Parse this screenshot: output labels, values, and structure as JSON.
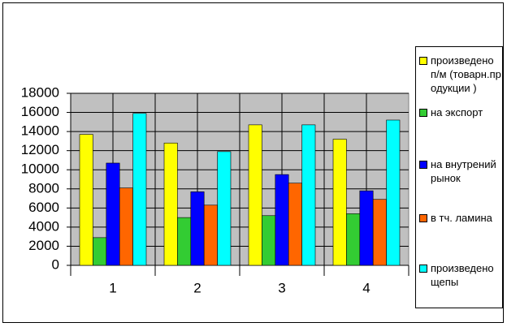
{
  "chart_data": {
    "type": "bar",
    "categories": [
      "1",
      "2",
      "3",
      "4"
    ],
    "series": [
      {
        "name": "произведено п/м (товарн.продукции )",
        "color": "#ffff00",
        "values": [
          13700,
          12800,
          14700,
          13200
        ]
      },
      {
        "name": "на экспорт",
        "color": "#33cc33",
        "values": [
          2900,
          5000,
          5200,
          5400
        ]
      },
      {
        "name": "на внутрений рынок",
        "color": "#0000ff",
        "values": [
          10700,
          7700,
          9500,
          7800
        ]
      },
      {
        "name": "в тч. ламина",
        "color": "#ff6600",
        "values": [
          8100,
          6300,
          8600,
          6900
        ]
      },
      {
        "name": "произведено щепы",
        "color": "#00ffff",
        "values": [
          15900,
          11900,
          14700,
          15200
        ]
      }
    ],
    "ylim": [
      0,
      18000
    ],
    "yticks": [
      0,
      2000,
      4000,
      6000,
      8000,
      10000,
      12000,
      14000,
      16000,
      18000
    ],
    "grid": true,
    "legend": "right"
  }
}
